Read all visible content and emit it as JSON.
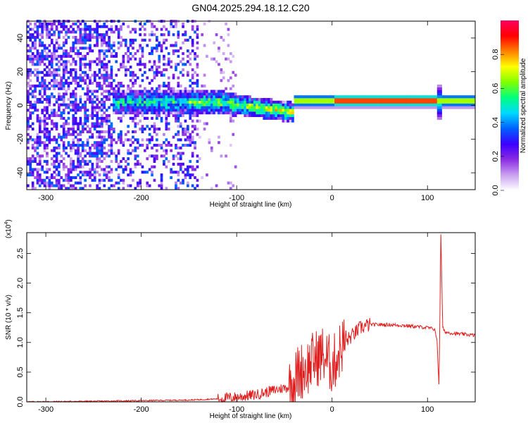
{
  "title": "GN04.2025.294.18.12.C20",
  "chart_data": [
    {
      "type": "heatmap",
      "xlabel": "Height of straight line (km)",
      "ylabel": "Frequency (Hz)",
      "xlim": [
        -320,
        150
      ],
      "ylim": [
        -50,
        50
      ],
      "xticks": [
        -300,
        -200,
        -100,
        0,
        100
      ],
      "yticks": [
        -40,
        -20,
        0,
        20,
        40
      ],
      "colorbar": {
        "label": "Normalized spectral amplitude",
        "range": [
          0.0,
          1.0
        ],
        "ticks": [
          "0.0",
          "0.2",
          "0.4",
          "0.6",
          "0.8"
        ],
        "colors": [
          "#ffffff",
          "#c9a0f0",
          "#8a2be2",
          "#3c00ff",
          "#0060ff",
          "#00d8ff",
          "#00ff80",
          "#80ff00",
          "#ffff00",
          "#ff8000",
          "#ff0000",
          "#ff0060"
        ]
      },
      "description_of_structure": [
        {
          "x_range": [
            -320,
            -140
          ],
          "pattern": "scattered noise across all frequencies",
          "amplitude": 0.25
        },
        {
          "x_range": [
            -230,
            -40
          ],
          "pattern": "band near 0 Hz descending to -5 Hz",
          "amplitude": 0.5
        },
        {
          "x_range": [
            -40,
            150
          ],
          "pattern": "narrow line at ~2 Hz",
          "amplitude": 0.9
        },
        {
          "x_range": [
            110,
            112
          ],
          "pattern": "vertical spike",
          "amplitude": 0.6
        }
      ]
    },
    {
      "type": "line",
      "xlabel": "Height of straight line (km)",
      "ylabel": "SNR (10 * v/v)",
      "yscale_label": "(x10",
      "yscale_exp": "4",
      "xlim": [
        -320,
        150
      ],
      "ylim": [
        0,
        2.85
      ],
      "xticks": [
        -300,
        -200,
        -100,
        0,
        100
      ],
      "yticks": [
        "0.0",
        "0.5",
        "1.0",
        "1.5",
        "2.0",
        "2.5"
      ],
      "series": [
        {
          "name": "SNR",
          "color": "#e02020",
          "x": [
            -320,
            -250,
            -200,
            -150,
            -120,
            -100,
            -80,
            -60,
            -45,
            -40,
            -35,
            -30,
            -25,
            -20,
            -15,
            -10,
            -5,
            0,
            5,
            10,
            20,
            30,
            40,
            60,
            80,
            100,
            108,
            110,
            112,
            113,
            114,
            116,
            118,
            120,
            130,
            150
          ],
          "values": [
            0.0,
            0.01,
            0.02,
            0.03,
            0.05,
            0.08,
            0.12,
            0.2,
            0.25,
            0.35,
            0.5,
            0.55,
            0.6,
            0.7,
            0.75,
            0.8,
            0.7,
            0.6,
            0.75,
            0.95,
            1.1,
            1.25,
            1.3,
            1.3,
            1.28,
            1.25,
            1.22,
            1.0,
            0.3,
            1.5,
            2.8,
            1.25,
            1.18,
            1.17,
            1.15,
            1.12
          ]
        }
      ]
    }
  ]
}
